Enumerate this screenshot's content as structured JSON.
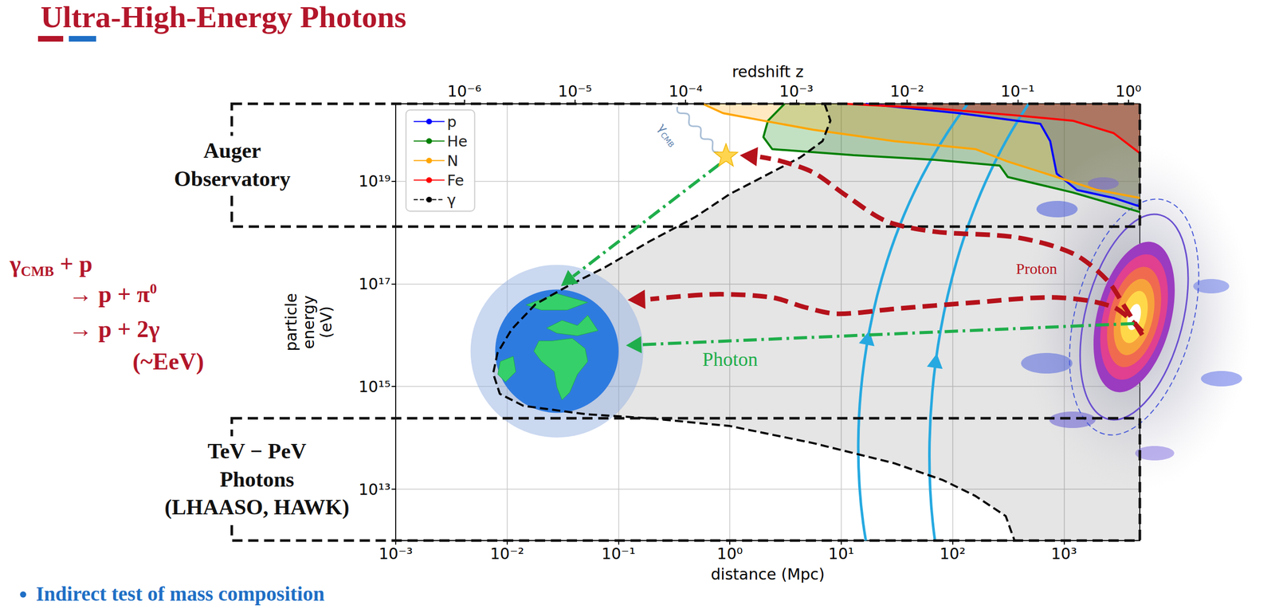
{
  "title": "Ultra-High-Energy Photons",
  "chart_data": {
    "type": "line",
    "x_label": "distance (Mpc)",
    "x2_label": "redshift z",
    "y_label": "particle energy (eV)",
    "log": true,
    "grid": true,
    "legend": "upper left",
    "xlim": [
      0.001,
      4800
    ],
    "xticks": [
      {
        "value": 0.001,
        "label": "10⁻³"
      },
      {
        "value": 0.01,
        "label": "10⁻²"
      },
      {
        "value": 0.1,
        "label": "10⁻¹"
      },
      {
        "value": 1,
        "label": "10⁰"
      },
      {
        "value": 10,
        "label": "10¹"
      },
      {
        "value": 100,
        "label": "10²"
      },
      {
        "value": 1000,
        "label": "10³"
      }
    ],
    "x2lim": [
      2.4e-07,
      1.27
    ],
    "x2ticks": [
      {
        "value": 1e-06,
        "label": "10⁻⁶"
      },
      {
        "value": 1e-05,
        "label": "10⁻⁵"
      },
      {
        "value": 0.0001,
        "label": "10⁻⁴"
      },
      {
        "value": 0.001,
        "label": "10⁻³"
      },
      {
        "value": 0.01,
        "label": "10⁻²"
      },
      {
        "value": 0.1,
        "label": "10⁻¹"
      },
      {
        "value": 1,
        "label": "10⁰"
      }
    ],
    "ylim": [
      1000000000000.0,
      3.2e+20
    ],
    "yticks": [
      {
        "value": 10000000000000.0,
        "label": "10¹³"
      },
      {
        "value": 1000000000000000.0,
        "label": "10¹⁵"
      },
      {
        "value": 1e+17,
        "label": "10¹⁷"
      },
      {
        "value": 1e+19,
        "label": "10¹⁹"
      }
    ],
    "series": [
      {
        "name": "p",
        "color": "#0000ff",
        "x": [
          16.6,
          114,
          614,
          752,
          860,
          1310,
          2790,
          4800
        ],
        "values": [
          3.2e+20,
          2.1e+20,
          1.3e+20,
          6e+19,
          1.4e+19,
          6.7e+18,
          4.7e+18,
          3.2e+18
        ]
      },
      {
        "name": "He",
        "color": "#008000",
        "x": [
          3.1,
          2.2,
          2.0,
          2.4,
          12.9,
          69,
          265,
          313,
          1200,
          4800
        ],
        "values": [
          3.2e+20,
          1.5e+20,
          7.2e+19,
          4.2e+19,
          3.2e+19,
          2.6e+19,
          2e+19,
          1.2e+19,
          6e+18,
          2.5e+18
        ]
      },
      {
        "name": "N",
        "color": "#ffa500",
        "x": [
          0.57,
          0.87,
          2.0,
          5.6,
          30,
          160,
          313,
          860,
          1990,
          4800
        ],
        "values": [
          3.2e+20,
          2.1e+20,
          1.5e+20,
          1e+20,
          6e+19,
          4.2e+19,
          2.4e+19,
          1.2e+19,
          6.7e+18,
          4.7e+18
        ]
      },
      {
        "name": "Fe",
        "color": "#ff0000",
        "x": [
          10.9,
          69,
          371,
          1200,
          2790,
          4800
        ],
        "values": [
          3.2e+20,
          2.6e+20,
          1.9e+20,
          1.5e+20,
          8.6e+19,
          3.5e+19
        ]
      },
      {
        "name": "γ",
        "color": "#000000",
        "line_style": "dashed",
        "x": [
          7.1,
          8.0,
          6.8,
          4.3,
          2.4,
          1.0,
          0.49,
          0.19,
          0.076,
          0.036,
          0.018,
          0.011,
          0.0082,
          0.0075,
          0.0086,
          0.014,
          0.05,
          0.19,
          1.0,
          5.6,
          30,
          82,
          160,
          300,
          340,
          360
        ],
        "values": [
          3.2e+20,
          1.5e+20,
          6e+19,
          2.9e+19,
          1.5e+19,
          5.6e+18,
          2e+18,
          6.7e+17,
          2.1e+17,
          9.3e+16,
          4e+16,
          1.3e+16,
          4500000000000000.0,
          1800000000000000.0,
          720000000000000.0,
          420000000000000.0,
          290000000000000.0,
          240000000000000.0,
          170000000000000.0,
          79000000000000.0,
          32000000000000.0,
          15000000000000.0,
          7400000000000.0,
          3000000000000.0,
          1400000000000.0,
          1000000000000.0
        ]
      }
    ]
  },
  "annotations": {
    "reaction": [
      [
        {
          "text": "γ"
        },
        {
          "sub": "CMB"
        },
        {
          "text": " + p"
        }
      ],
      [
        {
          "text": "→ p + π"
        },
        {
          "sup": "0"
        }
      ],
      [
        {
          "text": "→ p + 2γ"
        }
      ],
      [
        {
          "text": "(~EeV)"
        }
      ]
    ],
    "bands": [
      {
        "label": [
          "Auger",
          "Observatory"
        ],
        "range": [
          1.3e+18,
          3.2e+20
        ]
      },
      {
        "label": [
          "TeV − PeV",
          "Photons",
          "(LHAASO, HAWK)"
        ],
        "range": [
          1000000000000.0,
          240000000000000.0
        ]
      }
    ],
    "photon": "Photon",
    "proton": "Proton",
    "cmb": [
      {
        "text": "γ"
      },
      {
        "sub": "CMB"
      }
    ],
    "bullet": "Indirect test of mass composition"
  }
}
